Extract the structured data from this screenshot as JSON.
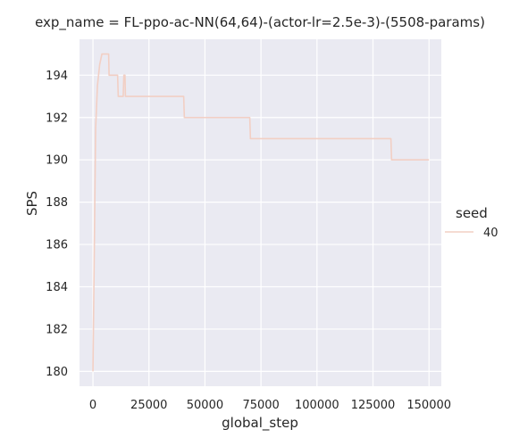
{
  "chart_data": {
    "type": "line",
    "title": "exp_name = FL-ppo-ac-NN(64,64)-(actor-lr=2.5e-3)-(5508-params)",
    "xlabel": "global_step",
    "ylabel": "SPS",
    "xlim": [
      -6000,
      155500
    ],
    "ylim": [
      179.3,
      195.7
    ],
    "xticks": [
      0,
      25000,
      50000,
      75000,
      100000,
      125000,
      150000
    ],
    "xtick_labels": [
      "0",
      "25000",
      "50000",
      "75000",
      "100000",
      "125000",
      "150000"
    ],
    "yticks": [
      180,
      182,
      184,
      186,
      188,
      190,
      192,
      194
    ],
    "ytick_labels": [
      "180",
      "182",
      "184",
      "186",
      "188",
      "190",
      "192",
      "194"
    ],
    "grid": true,
    "legend": {
      "title": "seed",
      "placement": "right"
    },
    "series": [
      {
        "name": "40",
        "color": "#f2cfc4",
        "x": [
          0,
          1200,
          2000,
          3000,
          4000,
          5500,
          7000,
          7200,
          11000,
          11300,
          12000,
          13500,
          13800,
          14300,
          14500,
          15000,
          40500,
          40800,
          70000,
          70300,
          133000,
          133300,
          150000
        ],
        "y": [
          180,
          191.5,
          193.5,
          194.5,
          195,
          195,
          195,
          194,
          194,
          193,
          193,
          193,
          194,
          194,
          193,
          193,
          193,
          192,
          192,
          191,
          191,
          190,
          190
        ]
      }
    ]
  }
}
